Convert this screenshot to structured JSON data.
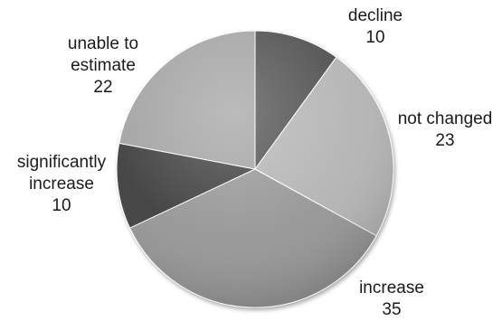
{
  "chart_data": {
    "type": "pie",
    "slices": [
      {
        "label_lines": [
          "decline"
        ],
        "value": 10,
        "value_text": "10",
        "color": "#4d4d4d"
      },
      {
        "label_lines": [
          "not changed"
        ],
        "value": 23,
        "value_text": "23",
        "color": "#b3b3b3"
      },
      {
        "label_lines": [
          "increase"
        ],
        "value": 35,
        "value_text": "35",
        "color": "#959595"
      },
      {
        "label_lines": [
          "significantly",
          "increase"
        ],
        "value": 10,
        "value_text": "10",
        "color": "#3e3e3e"
      },
      {
        "label_lines": [
          "unable to",
          "estimate"
        ],
        "value": 22,
        "value_text": "22",
        "color": "#a1a1a1"
      }
    ],
    "start_angle_deg": 0,
    "direction": "clockwise",
    "legend": "none",
    "data_labels": "outside"
  }
}
